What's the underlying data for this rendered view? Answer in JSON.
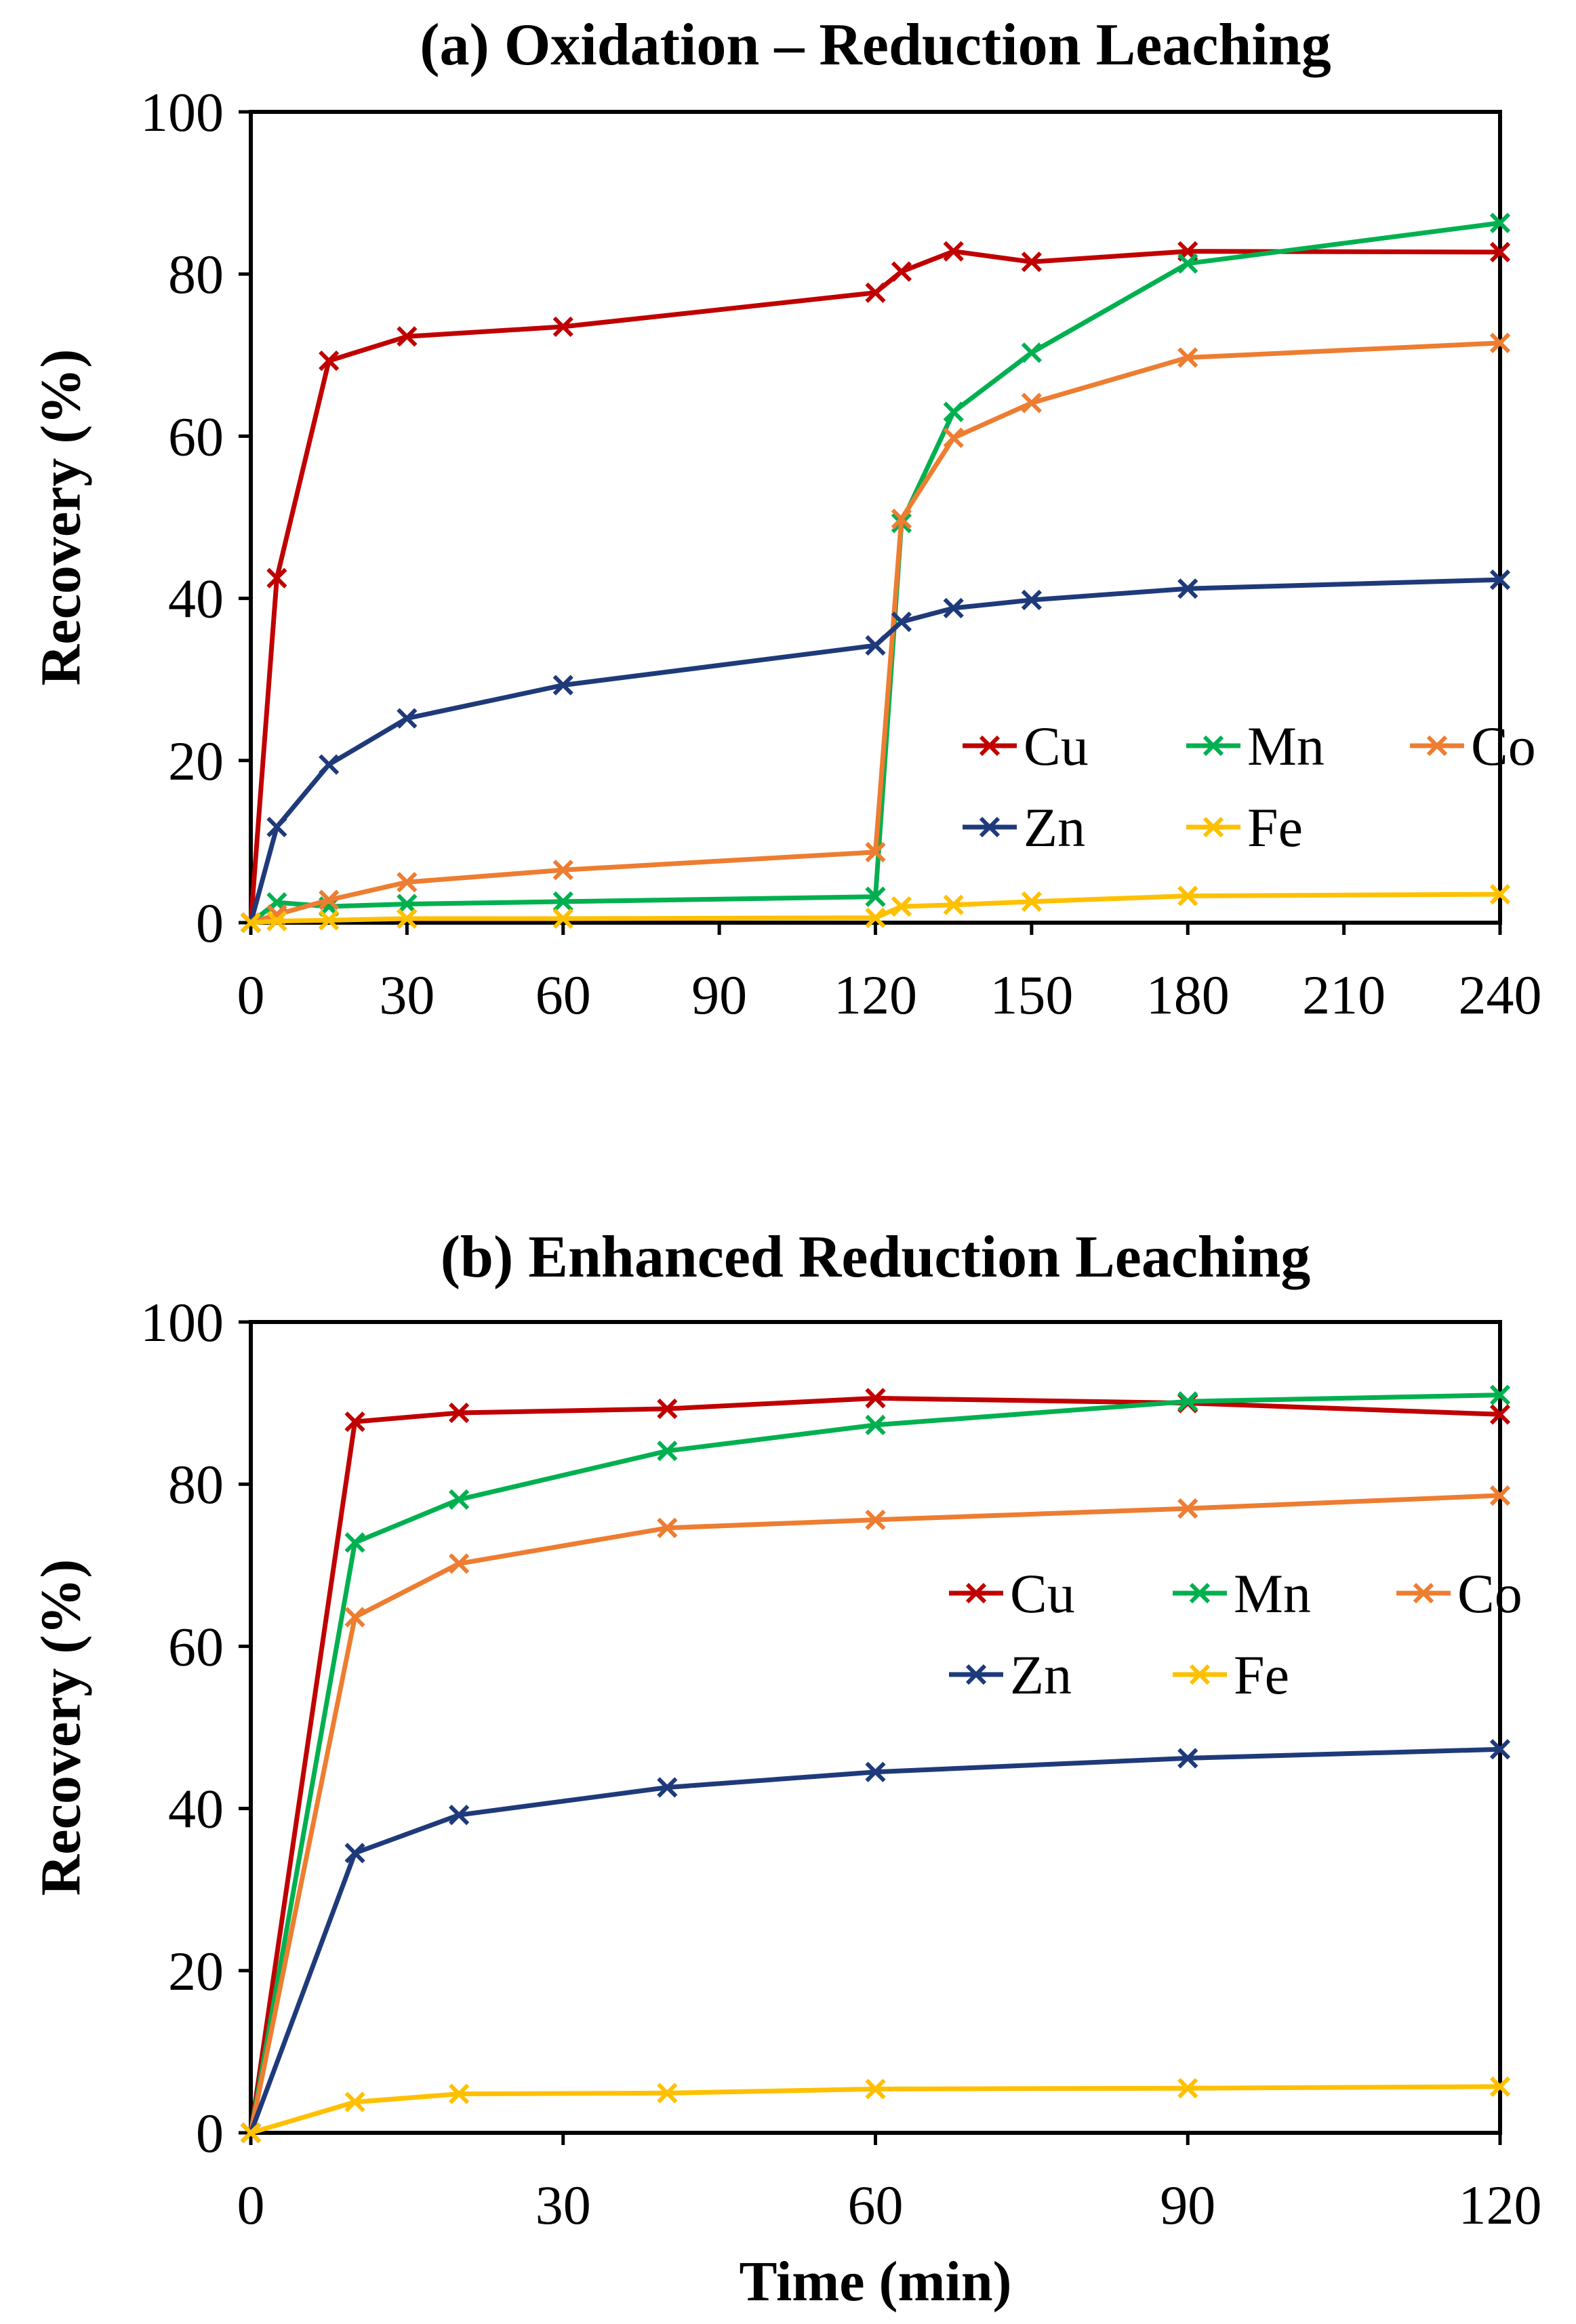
{
  "chart_data": [
    {
      "type": "line",
      "title": "(a) Oxidation – Reduction Leaching",
      "xlabel": "",
      "ylabel": "Recovery (%)",
      "xlim": [
        0,
        240
      ],
      "ylim": [
        0,
        100
      ],
      "xticks": [
        0,
        30,
        60,
        90,
        120,
        150,
        180,
        210,
        240
      ],
      "yticks": [
        0,
        20,
        40,
        60,
        80,
        100
      ],
      "grid": false,
      "legend_position": "center-right",
      "colors": {
        "Cu": "#c00000",
        "Mn": "#00b050",
        "Co": "#ed7d31",
        "Zn": "#1f3a7a",
        "Fe": "#ffc000"
      },
      "legend": [
        "Cu",
        "Mn",
        "Co",
        "Zn",
        "Fe"
      ],
      "series": [
        {
          "name": "Cu",
          "x": [
            0,
            5,
            15,
            30,
            60,
            120,
            125,
            135,
            150,
            180,
            240
          ],
          "values": [
            0,
            42.5,
            69.3,
            72.3,
            73.5,
            77.7,
            80.3,
            82.8,
            81.5,
            82.8,
            82.7
          ]
        },
        {
          "name": "Mn",
          "x": [
            0,
            5,
            15,
            30,
            60,
            120,
            125,
            135,
            150,
            180,
            240
          ],
          "values": [
            0,
            2.5,
            2.0,
            2.3,
            2.6,
            3.2,
            49.3,
            63.0,
            70.3,
            81.3,
            86.3
          ]
        },
        {
          "name": "Co",
          "x": [
            0,
            5,
            15,
            30,
            60,
            120,
            125,
            135,
            150,
            180,
            240
          ],
          "values": [
            0,
            1.0,
            2.8,
            5.0,
            6.5,
            8.7,
            49.8,
            59.8,
            64.1,
            69.7,
            71.5
          ]
        },
        {
          "name": "Zn",
          "x": [
            0,
            5,
            15,
            30,
            60,
            120,
            125,
            135,
            150,
            180,
            240
          ],
          "values": [
            0,
            11.8,
            19.5,
            25.2,
            29.3,
            34.2,
            37.1,
            38.8,
            39.8,
            41.2,
            42.3
          ]
        },
        {
          "name": "Fe",
          "x": [
            0,
            5,
            15,
            30,
            60,
            120,
            125,
            135,
            150,
            180,
            240
          ],
          "values": [
            0,
            0.2,
            0.3,
            0.5,
            0.5,
            0.6,
            2.0,
            2.2,
            2.6,
            3.3,
            3.5
          ]
        }
      ]
    },
    {
      "type": "line",
      "title": "(b) Enhanced Reduction Leaching",
      "xlabel": "Time (min)",
      "ylabel": "Recovery (%)",
      "xlim": [
        0,
        120
      ],
      "ylim": [
        0,
        100
      ],
      "xticks": [
        0,
        30,
        60,
        90,
        120
      ],
      "yticks": [
        0,
        20,
        40,
        60,
        80,
        100
      ],
      "grid": false,
      "legend_position": "center-right",
      "colors": {
        "Cu": "#c00000",
        "Mn": "#00b050",
        "Co": "#ed7d31",
        "Zn": "#1f3a7a",
        "Fe": "#ffc000"
      },
      "legend": [
        "Cu",
        "Mn",
        "Co",
        "Zn",
        "Fe"
      ],
      "series": [
        {
          "name": "Cu",
          "x": [
            0,
            10,
            20,
            40,
            60,
            90,
            120
          ],
          "values": [
            0,
            87.7,
            88.8,
            89.3,
            90.6,
            90.0,
            88.6
          ]
        },
        {
          "name": "Mn",
          "x": [
            0,
            10,
            20,
            40,
            60,
            90,
            120
          ],
          "values": [
            0,
            72.8,
            78.1,
            84.1,
            87.3,
            90.2,
            91.0
          ]
        },
        {
          "name": "Co",
          "x": [
            0,
            10,
            20,
            40,
            60,
            90,
            120
          ],
          "values": [
            0,
            63.6,
            70.2,
            74.6,
            75.6,
            77.0,
            78.6
          ]
        },
        {
          "name": "Zn",
          "x": [
            0,
            10,
            20,
            40,
            60,
            90,
            120
          ],
          "values": [
            0,
            34.5,
            39.2,
            42.6,
            44.5,
            46.2,
            47.3
          ]
        },
        {
          "name": "Fe",
          "x": [
            0,
            10,
            20,
            40,
            60,
            90,
            120
          ],
          "values": [
            0,
            3.8,
            4.8,
            4.9,
            5.4,
            5.5,
            5.7
          ]
        }
      ]
    }
  ]
}
